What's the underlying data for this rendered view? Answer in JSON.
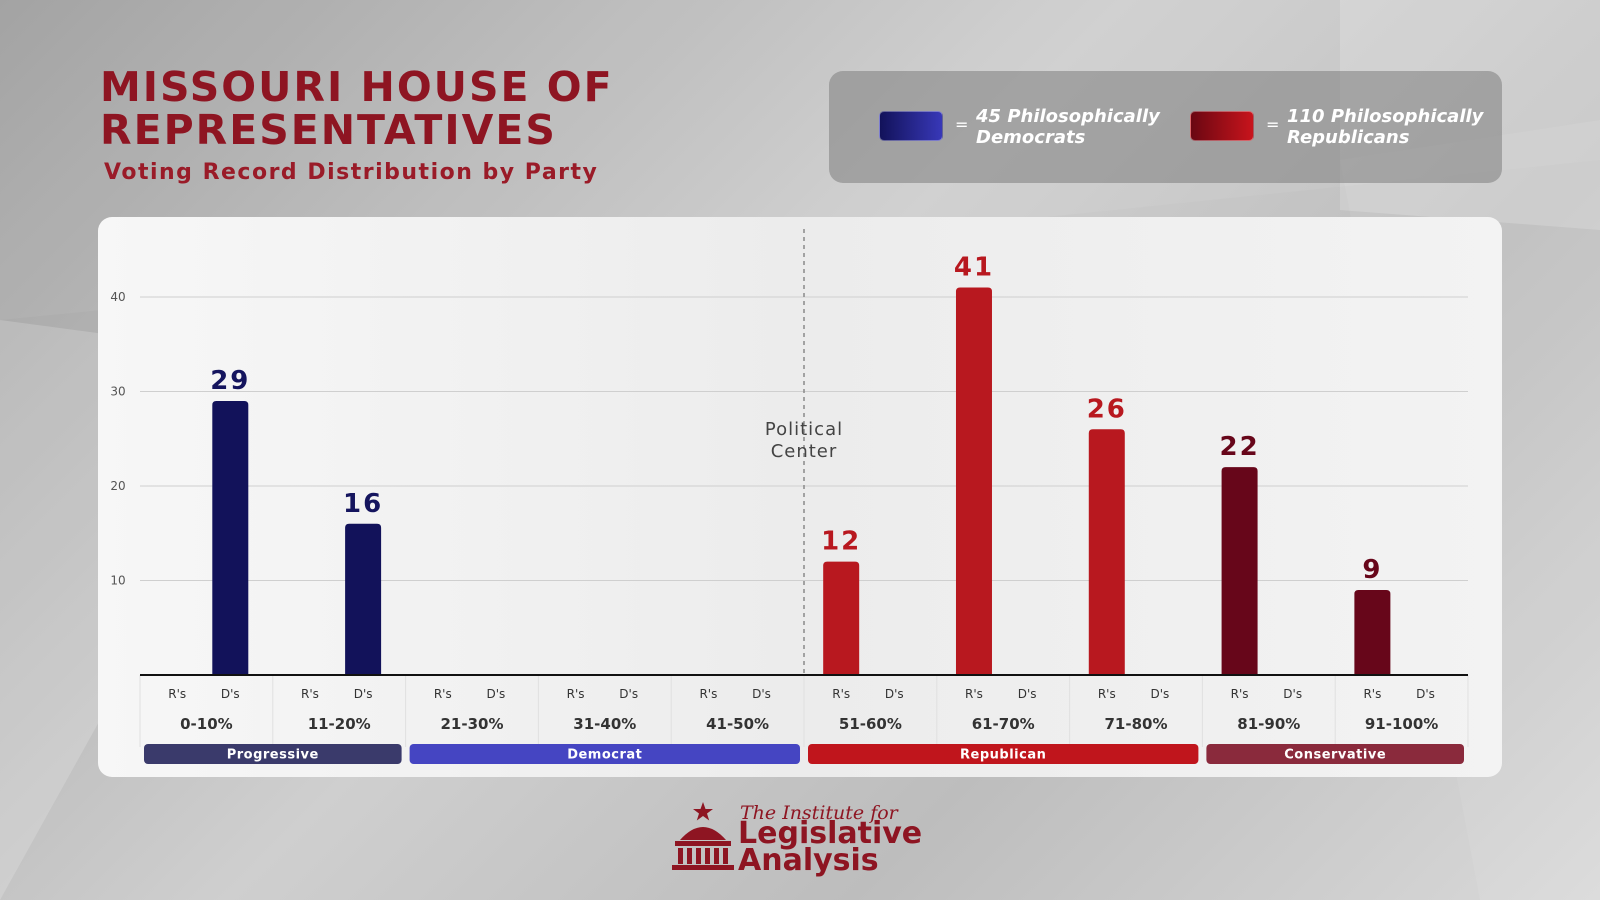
{
  "header": {
    "title": "MISSOURI HOUSE OF REPRESENTATIVES",
    "subtitle": "Voting Record Distribution by Party"
  },
  "legend": {
    "democrats_label": "45 Philosophically Democrats",
    "democrats_color": "#1a1a6e",
    "republicans_label": "110 Philosophically Republicans",
    "republicans_color": "#b0151e",
    "equals": "="
  },
  "chart_data": {
    "type": "bar",
    "title": "",
    "xlabel": "",
    "ylabel": "",
    "ylim": [
      0,
      44
    ],
    "yticks": [
      10,
      20,
      30,
      40
    ],
    "grid": true,
    "categories": [
      "0-10%",
      "11-20%",
      "21-30%",
      "31-40%",
      "41-50%",
      "51-60%",
      "61-70%",
      "71-80%",
      "81-90%",
      "91-100%"
    ],
    "sub_labels": [
      "R's",
      "D's"
    ],
    "series": [
      {
        "name": "R's",
        "values": [
          0,
          0,
          0,
          0,
          0,
          12,
          41,
          26,
          22,
          9
        ]
      },
      {
        "name": "D's",
        "values": [
          29,
          16,
          0,
          0,
          0,
          0,
          0,
          0,
          0,
          0
        ]
      }
    ],
    "bars": [
      {
        "category": "0-10%",
        "group": "D's",
        "value": 29,
        "color": "#12125a",
        "label_color": "#15155e"
      },
      {
        "category": "11-20%",
        "group": "D's",
        "value": 16,
        "color": "#12125a",
        "label_color": "#15155e"
      },
      {
        "category": "51-60%",
        "group": "R's",
        "value": 12,
        "color": "#b8181f",
        "label_color": "#b8181f"
      },
      {
        "category": "61-70%",
        "group": "R's",
        "value": 41,
        "color": "#b8181f",
        "label_color": "#b8181f"
      },
      {
        "category": "71-80%",
        "group": "R's",
        "value": 26,
        "color": "#b8181f",
        "label_color": "#b8181f"
      },
      {
        "category": "81-90%",
        "group": "R's",
        "value": 22,
        "color": "#67061a",
        "label_color": "#67061a"
      },
      {
        "category": "91-100%",
        "group": "R's",
        "value": 9,
        "color": "#67061a",
        "label_color": "#67061a"
      }
    ],
    "center_annotation": "Political Center",
    "center_annotation_lines": [
      "Political",
      "Center"
    ],
    "bands": [
      {
        "label": "Progressive",
        "from": 0,
        "to": 1,
        "color": "#3a3a6b"
      },
      {
        "label": "Democrat",
        "from": 2,
        "to": 4,
        "color": "#4545c2"
      },
      {
        "label": "Republican",
        "from": 5,
        "to": 7,
        "color": "#c0151c"
      },
      {
        "label": "Conservative",
        "from": 8,
        "to": 9,
        "color": "#8a2a3c"
      }
    ]
  },
  "logo": {
    "line1": "The Institute for",
    "line2": "Legislative",
    "line3": "Analysis"
  }
}
